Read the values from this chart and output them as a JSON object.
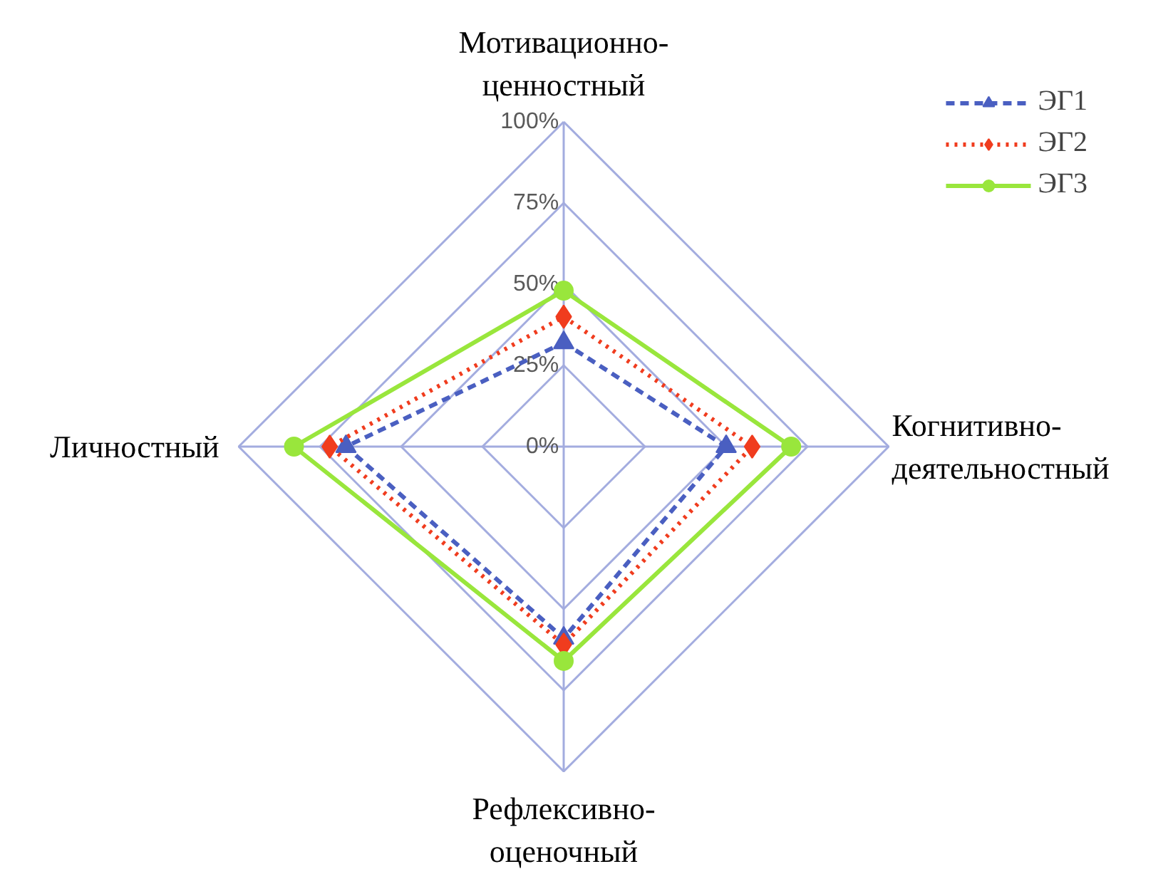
{
  "chart_data": {
    "type": "radar",
    "categories": [
      "Мотивационно-\nценностный",
      "Когнитивно-\nдеятельностный",
      "Рефлексивно-\nоценочный",
      "Личностный"
    ],
    "ylim": [
      0,
      100
    ],
    "yticks": [
      {
        "value": 0,
        "label": "0%"
      },
      {
        "value": 25,
        "label": "25%"
      },
      {
        "value": 50,
        "label": "50%"
      },
      {
        "value": 75,
        "label": "75%"
      },
      {
        "value": 100,
        "label": "100%"
      }
    ],
    "grid": true,
    "legend": "top right",
    "series": [
      {
        "name": "ЭГ1",
        "color": "#4a5fc1",
        "values": [
          32,
          50,
          59,
          67
        ],
        "line_style": "dashed",
        "marker": "triangle"
      },
      {
        "name": "ЭГ2",
        "color": "#f03c1e",
        "values": [
          40,
          58,
          61,
          72
        ],
        "line_style": "dotted",
        "marker": "diamond"
      },
      {
        "name": "ЭГ3",
        "color": "#99e63c",
        "values": [
          48,
          70,
          66,
          83
        ],
        "line_style": "solid",
        "marker": "circle"
      }
    ]
  }
}
